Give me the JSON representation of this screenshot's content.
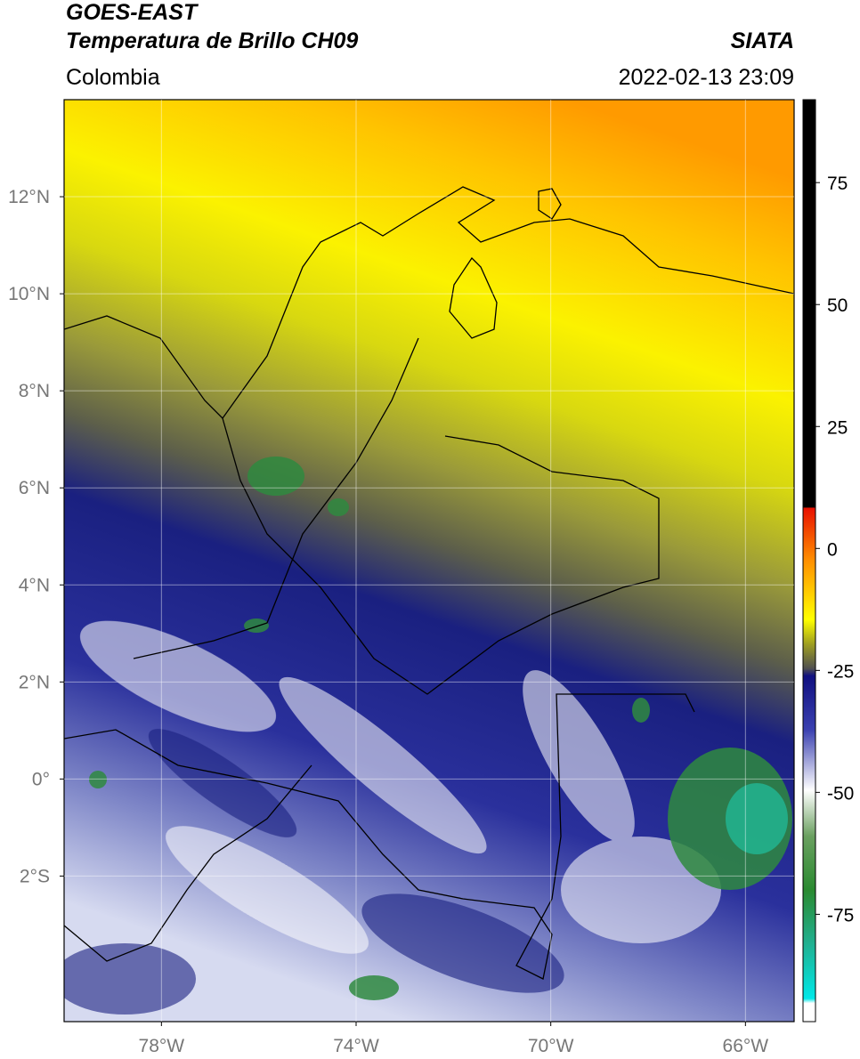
{
  "header": {
    "title": "GOES-EAST",
    "subtitle": "Temperatura de Brillo CH09",
    "source": "SIATA",
    "region": "Colombia",
    "datetime": "2022-02-13 23:09"
  },
  "map": {
    "xlim": [
      -80,
      -65
    ],
    "ylim": [
      -5,
      14
    ],
    "xticks": [
      {
        "value": -78,
        "label": "78°W"
      },
      {
        "value": -74,
        "label": "74°W"
      },
      {
        "value": -70,
        "label": "70°W"
      },
      {
        "value": -66,
        "label": "66°W"
      }
    ],
    "yticks": [
      {
        "value": 12,
        "label": "12°N"
      },
      {
        "value": 10,
        "label": "10°N"
      },
      {
        "value": 8,
        "label": "8°N"
      },
      {
        "value": 6,
        "label": "6°N"
      },
      {
        "value": 4,
        "label": "4°N"
      },
      {
        "value": 2,
        "label": "2°N"
      },
      {
        "value": 0,
        "label": "0°"
      },
      {
        "value": -2,
        "label": "2°S"
      }
    ]
  },
  "colorbar": {
    "lim": [
      -97,
      92
    ],
    "ticks": [
      75,
      50,
      25,
      0,
      -25,
      -50,
      -75
    ]
  }
}
